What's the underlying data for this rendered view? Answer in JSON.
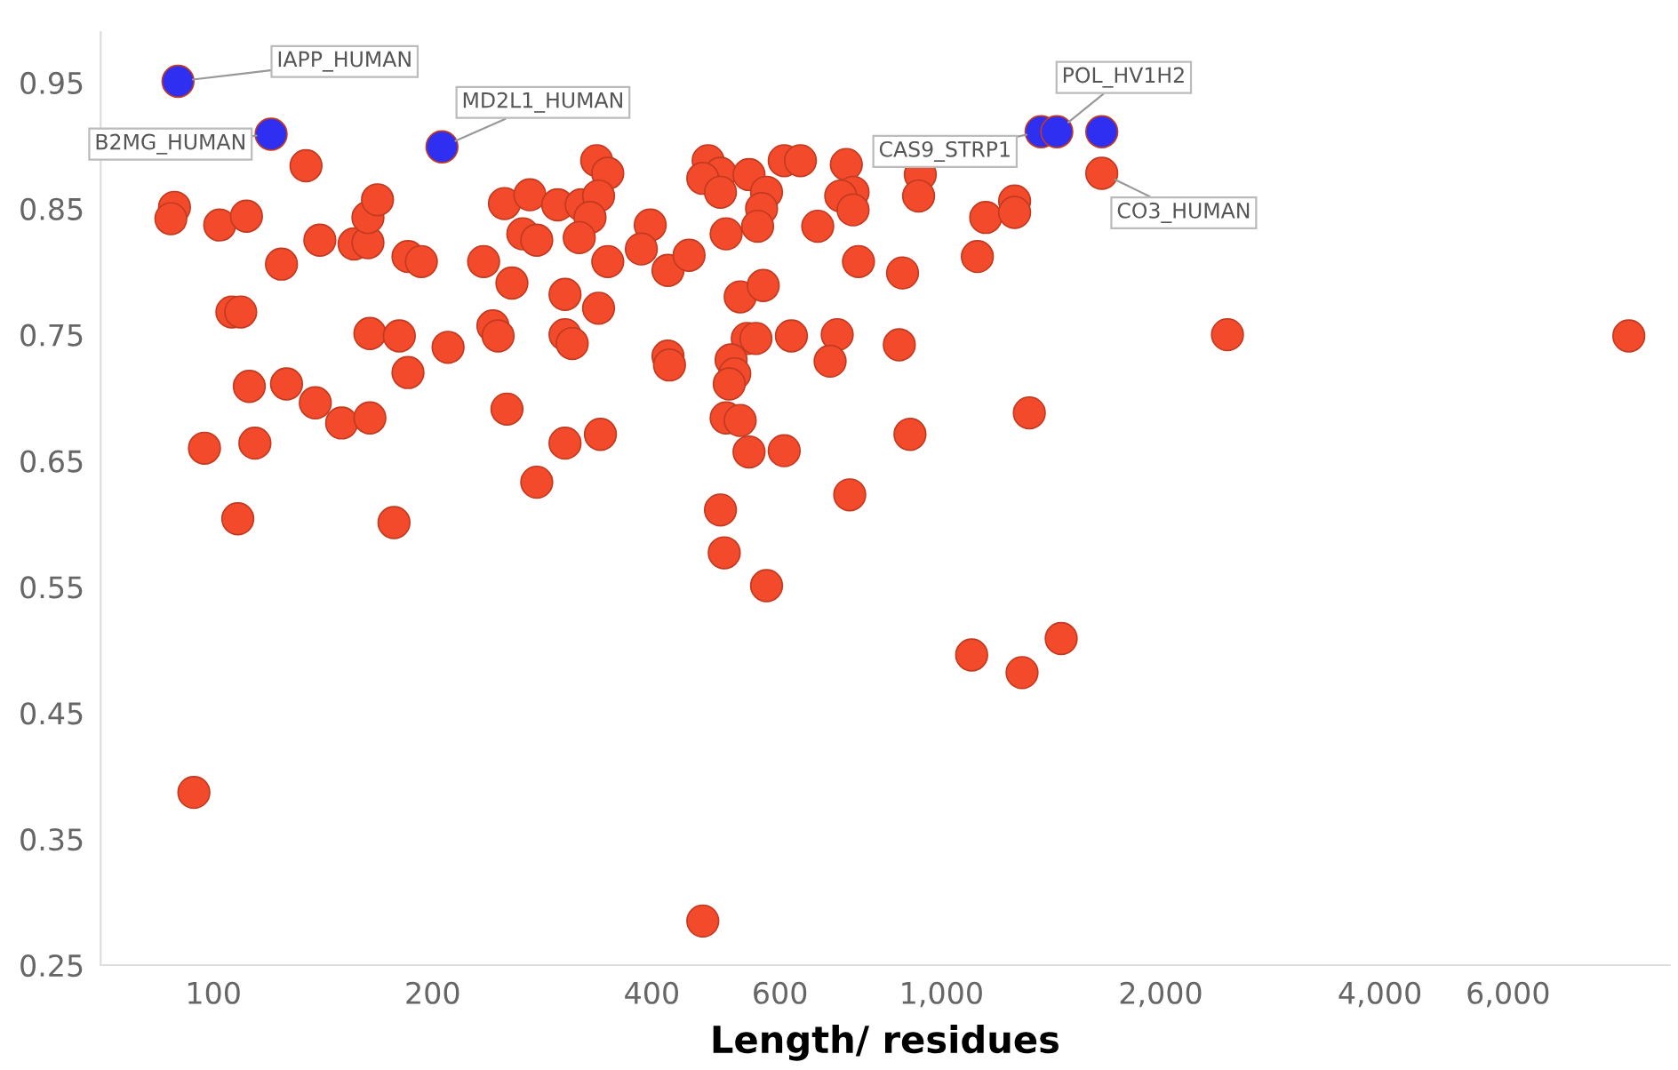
{
  "chart_data": {
    "type": "scatter",
    "xlabel": "Length/ residues",
    "log": "x",
    "marker": "circle",
    "xlim": [
      70,
      10000
    ],
    "ylim": [
      0.25,
      0.99
    ],
    "xticks": [
      100,
      200,
      400,
      600,
      {
        "value": 1000,
        "label": "1,000"
      },
      {
        "value": 2000,
        "label": "2,000"
      },
      {
        "value": 4000,
        "label": "4,000"
      },
      {
        "value": 6000,
        "label": "6,000"
      }
    ],
    "yticks": [
      0.25,
      0.35,
      0.45,
      0.55,
      0.65,
      0.75,
      0.85,
      0.95
    ],
    "series": [
      {
        "color": "#f24a2b",
        "x": [
          88.4,
          87.4,
          102,
          111,
          134,
          124,
          140,
          156,
          163,
          163,
          168,
          185,
          193,
          106,
          109,
          164,
          180,
          185,
          210,
          112,
          126,
          138,
          150,
          164,
          97.2,
          114,
          278,
          108,
          177,
          235,
          257,
          253,
          242,
          246,
          251,
          272,
          266,
          336,
          348,
          297,
          320,
          338,
          329,
          318,
          278,
          398,
          387,
          348,
          421,
          450,
          304,
          338,
          304,
          311,
          421,
          423,
          340,
          304,
          478,
          497,
          470,
          497,
          544,
          575,
          566,
          559,
          506,
          529,
          569,
          541,
          556,
          514,
          520,
          511,
          506,
          529,
          544,
          608,
          497,
          608,
          640,
          676,
          769,
          884,
          622,
          719,
          703,
          875,
          905,
          748,
          740,
          756,
          727,
          756,
          935,
          930,
          1150,
          1260,
          1260,
          1120,
          1320,
          503,
          575,
          94.0,
          470,
          1100,
          1290,
          1460,
          2470,
          8790,
          1660
        ],
        "values": [
          0.851,
          0.842,
          0.837,
          0.844,
          0.884,
          0.806,
          0.825,
          0.822,
          0.823,
          0.843,
          0.857,
          0.812,
          0.808,
          0.768,
          0.768,
          0.751,
          0.749,
          0.72,
          0.74,
          0.709,
          0.711,
          0.696,
          0.68,
          0.684,
          0.66,
          0.664,
          0.633,
          0.604,
          0.601,
          0.808,
          0.791,
          0.691,
          0.757,
          0.749,
          0.854,
          0.861,
          0.83,
          0.888,
          0.878,
          0.853,
          0.853,
          0.86,
          0.843,
          0.827,
          0.825,
          0.837,
          0.818,
          0.808,
          0.801,
          0.813,
          0.782,
          0.771,
          0.75,
          0.743,
          0.733,
          0.726,
          0.671,
          0.664,
          0.888,
          0.878,
          0.874,
          0.863,
          0.877,
          0.863,
          0.85,
          0.836,
          0.83,
          0.78,
          0.789,
          0.747,
          0.747,
          0.73,
          0.719,
          0.711,
          0.684,
          0.682,
          0.657,
          0.658,
          0.611,
          0.888,
          0.888,
          0.836,
          0.808,
          0.799,
          0.749,
          0.75,
          0.729,
          0.742,
          0.671,
          0.623,
          0.885,
          0.863,
          0.86,
          0.849,
          0.877,
          0.86,
          0.843,
          0.856,
          0.847,
          0.812,
          0.688,
          0.577,
          0.551,
          0.387,
          0.285,
          0.496,
          0.482,
          0.509,
          0.75,
          0.749,
          0.878
        ]
      },
      {
        "color": "#2f2ff2",
        "x": [
          89.4,
          120,
          206,
          1370,
          1440,
          1660
        ],
        "values": [
          0.951,
          0.909,
          0.899,
          0.911,
          0.911,
          0.911
        ]
      }
    ],
    "annotations": [
      {
        "text": "IAPP_HUMAN",
        "x": 89.4,
        "y": 0.951
      },
      {
        "text": "B2MG_HUMAN",
        "x": 120,
        "y": 0.909
      },
      {
        "text": "MD2L1_HUMAN",
        "x": 206,
        "y": 0.899
      },
      {
        "text": "CAS9_STRP1",
        "x": 1370,
        "y": 0.911
      },
      {
        "text": "POL_HV1H2",
        "x": 1440,
        "y": 0.911
      },
      {
        "text": "CO3_HUMAN",
        "x": 1660,
        "y": 0.878
      }
    ]
  }
}
